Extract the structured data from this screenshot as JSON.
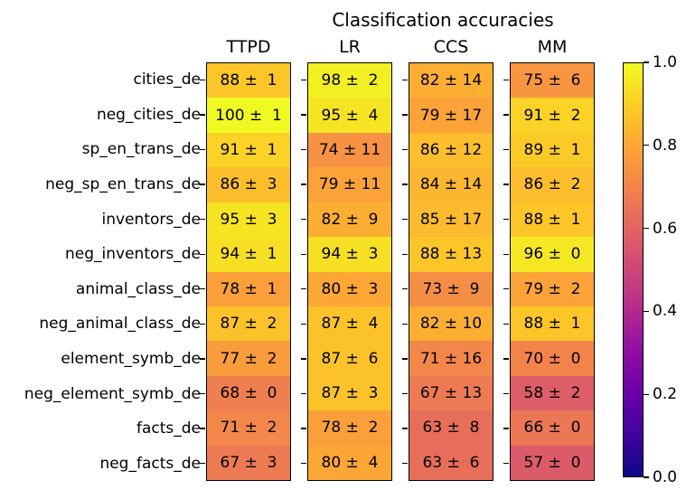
{
  "chart_data": {
    "type": "heatmap",
    "title": "Classification accuracies",
    "columns": [
      "TTPD",
      "LR",
      "CCS",
      "MM"
    ],
    "rows": [
      "cities_de",
      "neg_cities_de",
      "sp_en_trans_de",
      "neg_sp_en_trans_de",
      "inventors_de",
      "neg_inventors_de",
      "animal_class_de",
      "neg_animal_class_de",
      "element_symb_de",
      "neg_element_symb_de",
      "facts_de",
      "neg_facts_de"
    ],
    "series": [
      {
        "name": "TTPD",
        "values": [
          88,
          100,
          91,
          86,
          95,
          94,
          78,
          87,
          77,
          68,
          71,
          67
        ],
        "errors": [
          1,
          1,
          1,
          3,
          3,
          1,
          1,
          2,
          2,
          0,
          2,
          3
        ],
        "labels": [
          "88 ±  1",
          "100 ±  1",
          "91 ±  1",
          "86 ±  3",
          "95 ±  3",
          "94 ±  1",
          "78 ±  1",
          "87 ±  2",
          "77 ±  2",
          "68 ±  0",
          "71 ±  2",
          "67 ±  3"
        ]
      },
      {
        "name": "LR",
        "values": [
          98,
          95,
          74,
          79,
          82,
          94,
          80,
          87,
          87,
          87,
          78,
          80
        ],
        "errors": [
          2,
          4,
          11,
          11,
          9,
          3,
          3,
          4,
          6,
          3,
          2,
          4
        ],
        "labels": [
          "98 ±  2",
          "95 ±  4",
          "74 ± 11",
          "79 ± 11",
          "82 ±  9",
          "94 ±  3",
          "80 ±  3",
          "87 ±  4",
          "87 ±  6",
          "87 ±  3",
          "78 ±  2",
          "80 ±  4"
        ]
      },
      {
        "name": "CCS",
        "values": [
          82,
          79,
          86,
          84,
          85,
          88,
          73,
          82,
          71,
          67,
          63,
          63
        ],
        "errors": [
          14,
          17,
          12,
          14,
          17,
          13,
          9,
          10,
          16,
          13,
          8,
          6
        ],
        "labels": [
          "82 ± 14",
          "79 ± 17",
          "86 ± 12",
          "84 ± 14",
          "85 ± 17",
          "88 ± 13",
          "73 ±  9",
          "82 ± 10",
          "71 ± 16",
          "67 ± 13",
          "63 ±  8",
          "63 ±  6"
        ]
      },
      {
        "name": "MM",
        "values": [
          75,
          91,
          89,
          86,
          88,
          96,
          79,
          88,
          70,
          58,
          66,
          57
        ],
        "errors": [
          6,
          2,
          1,
          2,
          1,
          0,
          2,
          1,
          0,
          2,
          0,
          0
        ],
        "labels": [
          "75 ±  6",
          "91 ±  2",
          "89 ±  1",
          "86 ±  2",
          "88 ±  1",
          "96 ±  0",
          "79 ±  2",
          "88 ±  1",
          "70 ±  0",
          "58 ±  2",
          "66 ±  0",
          "57 ±  0"
        ]
      }
    ],
    "value_range": [
      0,
      100
    ],
    "colormap": "plasma",
    "colormap_stops": [
      "#0d0887",
      "#41049d",
      "#6a00a8",
      "#8f0da4",
      "#b12a90",
      "#cc4778",
      "#e16462",
      "#f2844b",
      "#fca636",
      "#fcce25",
      "#f0f921"
    ],
    "colorbar": {
      "min": 0.0,
      "max": 1.0,
      "tick_labels": [
        "1.0",
        "0.8",
        "0.6",
        "0.4",
        "0.2",
        "0.0"
      ]
    },
    "text_color": "#000000",
    "grid": false,
    "legend": false
  }
}
